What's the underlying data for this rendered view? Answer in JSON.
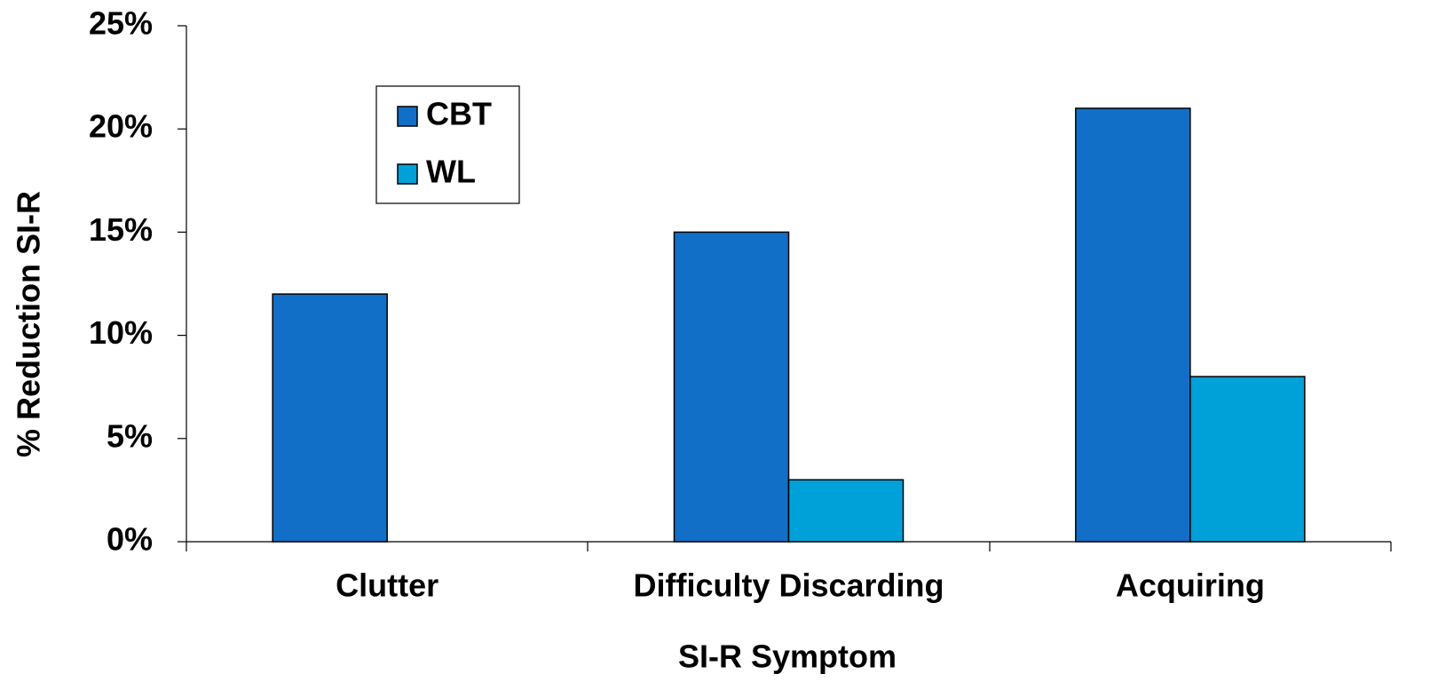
{
  "chart_data": {
    "type": "bar",
    "categories": [
      "Clutter",
      "Difficulty Discarding",
      "Acquiring"
    ],
    "series": [
      {
        "name": "CBT",
        "color": "#116fc7",
        "values": [
          12,
          15,
          21
        ]
      },
      {
        "name": "WL",
        "color": "#00a0d8",
        "values": [
          0,
          3,
          8
        ]
      }
    ],
    "ylim": [
      0,
      25
    ],
    "yticks": [
      {
        "value": 0,
        "label": "0%"
      },
      {
        "value": 5,
        "label": "5%"
      },
      {
        "value": 10,
        "label": "10%"
      },
      {
        "value": 15,
        "label": "15%"
      },
      {
        "value": 20,
        "label": "20%"
      },
      {
        "value": 25,
        "label": "25%"
      }
    ],
    "x_label": "SI-R Symptom",
    "y_label": "% Reduction SI-R"
  }
}
